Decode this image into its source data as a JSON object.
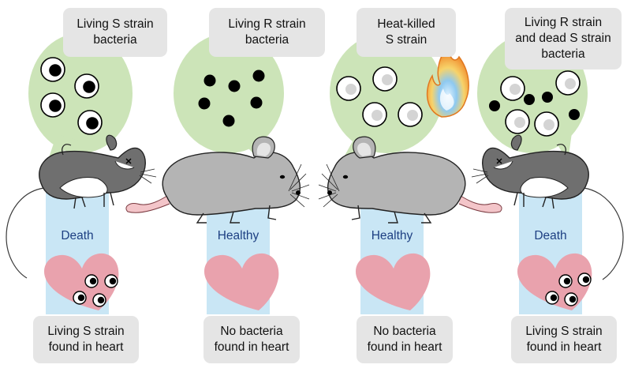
{
  "columns": [
    {
      "bacteria_label": [
        "Living S strain",
        "bacteria"
      ],
      "outcome": "Death",
      "heart_label": [
        "Living S strain",
        "found in heart"
      ],
      "mouse_state": "dead",
      "bacteria_in_heart": true
    },
    {
      "bacteria_label": [
        "Living R strain",
        "bacteria"
      ],
      "outcome": "Healthy",
      "heart_label": [
        "No bacteria",
        "found in heart"
      ],
      "mouse_state": "alive",
      "bacteria_in_heart": false
    },
    {
      "bacteria_label": [
        "Heat-killed",
        "S strain"
      ],
      "outcome": "Healthy",
      "heart_label": [
        "No bacteria",
        "found in heart"
      ],
      "mouse_state": "alive",
      "bacteria_in_heart": false,
      "flame": true
    },
    {
      "bacteria_label": [
        "Living R strain",
        "and dead S strain",
        "bacteria"
      ],
      "outcome": "Death",
      "heart_label": [
        "Living S strain",
        "found in heart"
      ],
      "mouse_state": "dead",
      "bacteria_in_heart": true
    }
  ],
  "colors": {
    "bubble": "#cce4b8",
    "column_bar": "#c9e6f5",
    "heart": "#e9a2ad",
    "label_box": "#e5e5e5",
    "outcome_text": "#1d3f82",
    "mouse_dead": "#6f6f6f",
    "mouse_alive": "#b4b4b4",
    "tail": "#f3c5c9"
  }
}
